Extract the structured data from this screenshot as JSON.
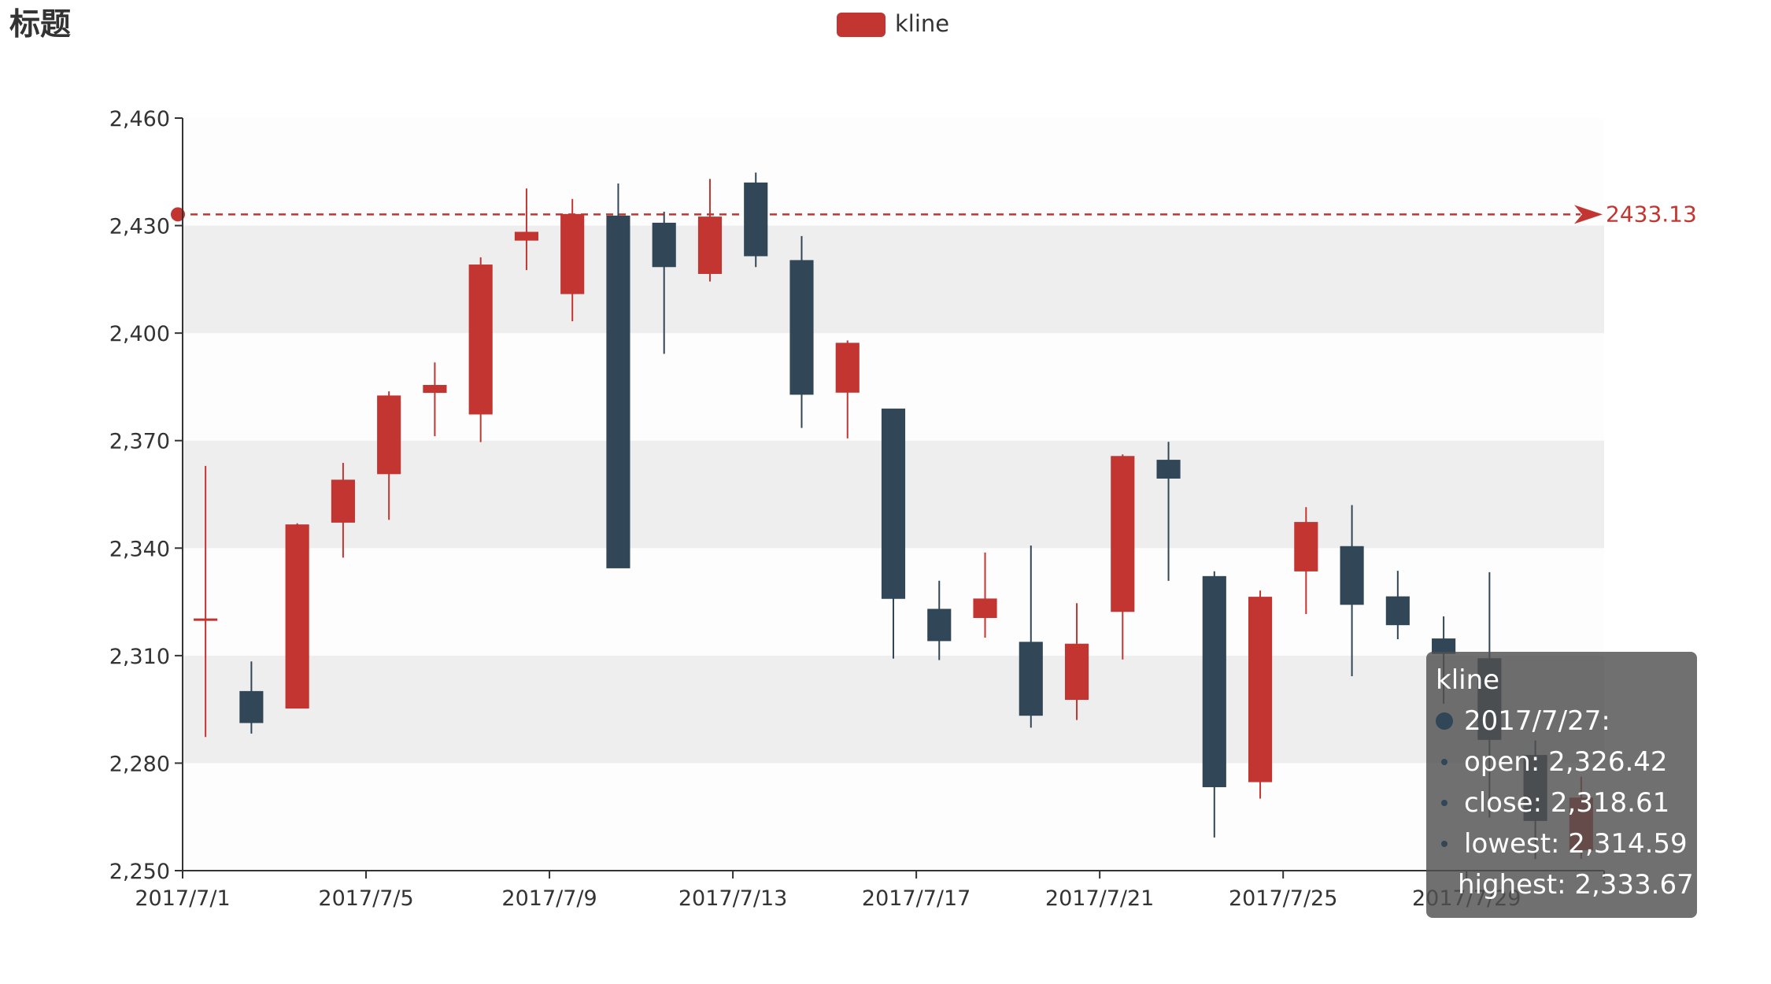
{
  "chart_data": {
    "type": "candlestick",
    "title": "标题",
    "legend": {
      "entries": [
        "kline"
      ],
      "position": "top-center"
    },
    "series": [
      {
        "name": "kline",
        "up_color": "#c23531",
        "down_color": "#314656",
        "points": [
          {
            "date": "2017/7/1",
            "open": 2320.26,
            "close": 2320.26,
            "lowest": 2287.3,
            "highest": 2362.94
          },
          {
            "date": "2017/7/2",
            "open": 2300,
            "close": 2291.3,
            "lowest": 2288.26,
            "highest": 2308.38
          },
          {
            "date": "2017/7/3",
            "open": 2295.35,
            "close": 2346.5,
            "lowest": 2295.35,
            "highest": 2346.92
          },
          {
            "date": "2017/7/4",
            "open": 2347.22,
            "close": 2358.98,
            "lowest": 2337.35,
            "highest": 2363.8
          },
          {
            "date": "2017/7/5",
            "open": 2360.75,
            "close": 2382.48,
            "lowest": 2347.89,
            "highest": 2383.76
          },
          {
            "date": "2017/7/6",
            "open": 2383.43,
            "close": 2385.42,
            "lowest": 2371.23,
            "highest": 2391.82
          },
          {
            "date": "2017/7/7",
            "open": 2377.41,
            "close": 2419.02,
            "lowest": 2369.57,
            "highest": 2421.15
          },
          {
            "date": "2017/7/8",
            "open": 2425.92,
            "close": 2428.15,
            "lowest": 2417.58,
            "highest": 2440.38
          },
          {
            "date": "2017/7/9",
            "open": 2411,
            "close": 2433.13,
            "lowest": 2403.3,
            "highest": 2437.42
          },
          {
            "date": "2017/7/10",
            "open": 2432.68,
            "close": 2334.48,
            "lowest": 2334.48,
            "highest": 2441.73
          },
          {
            "date": "2017/7/11",
            "open": 2430.69,
            "close": 2418.53,
            "lowest": 2394.22,
            "highest": 2433.89
          },
          {
            "date": "2017/7/12",
            "open": 2416.62,
            "close": 2432.4,
            "lowest": 2414.4,
            "highest": 2443.03
          },
          {
            "date": "2017/7/13",
            "open": 2441.91,
            "close": 2421.56,
            "lowest": 2418.43,
            "highest": 2444.8
          },
          {
            "date": "2017/7/14",
            "open": 2420.26,
            "close": 2382.91,
            "lowest": 2373.53,
            "highest": 2427.07
          },
          {
            "date": "2017/7/15",
            "open": 2383.49,
            "close": 2397.18,
            "lowest": 2370.61,
            "highest": 2397.94
          },
          {
            "date": "2017/7/16",
            "open": 2378.82,
            "close": 2325.95,
            "lowest": 2309.17,
            "highest": 2378.82
          },
          {
            "date": "2017/7/17",
            "open": 2322.94,
            "close": 2314.16,
            "lowest": 2308.76,
            "highest": 2330.88
          },
          {
            "date": "2017/7/18",
            "open": 2320.62,
            "close": 2325.82,
            "lowest": 2315.01,
            "highest": 2338.78
          },
          {
            "date": "2017/7/19",
            "open": 2313.74,
            "close": 2293.34,
            "lowest": 2289.89,
            "highest": 2340.71
          },
          {
            "date": "2017/7/20",
            "open": 2297.77,
            "close": 2313.22,
            "lowest": 2292.03,
            "highest": 2324.63
          },
          {
            "date": "2017/7/21",
            "open": 2322.32,
            "close": 2365.59,
            "lowest": 2308.92,
            "highest": 2366.16
          },
          {
            "date": "2017/7/22",
            "open": 2364.54,
            "close": 2359.51,
            "lowest": 2330.86,
            "highest": 2369.65
          },
          {
            "date": "2017/7/23",
            "open": 2332.08,
            "close": 2273.4,
            "lowest": 2259.25,
            "highest": 2333.54
          },
          {
            "date": "2017/7/24",
            "open": 2274.81,
            "close": 2326.31,
            "lowest": 2270.1,
            "highest": 2328.14
          },
          {
            "date": "2017/7/25",
            "open": 2333.61,
            "close": 2347.18,
            "lowest": 2321.6,
            "highest": 2351.44
          },
          {
            "date": "2017/7/26",
            "open": 2340.44,
            "close": 2324.29,
            "lowest": 2304.27,
            "highest": 2352.02
          },
          {
            "date": "2017/7/27",
            "open": 2326.42,
            "close": 2318.61,
            "lowest": 2314.59,
            "highest": 2333.67
          },
          {
            "date": "2017/7/28",
            "open": 2314.68,
            "close": 2310.59,
            "lowest": 2296.58,
            "highest": 2320.96
          },
          {
            "date": "2017/7/29",
            "open": 2309.16,
            "close": 2286.6,
            "lowest": 2264.83,
            "highest": 2333.29
          },
          {
            "date": "2017/7/30",
            "open": 2282.17,
            "close": 2263.97,
            "lowest": 2253.25,
            "highest": 2286.33
          },
          {
            "date": "2017/7/31",
            "open": 2255.77,
            "close": 2270.28,
            "lowest": 2253.31,
            "highest": 2276.22
          }
        ]
      }
    ],
    "x_axis": {
      "type": "category",
      "tick_labels": [
        "2017/7/1",
        "2017/7/5",
        "2017/7/9",
        "2017/7/13",
        "2017/7/17",
        "2017/7/21",
        "2017/7/25",
        "2017/7/29"
      ]
    },
    "y_axis": {
      "ylim": [
        2250,
        2460
      ],
      "ticks": [
        2250,
        2280,
        2310,
        2340,
        2370,
        2400,
        2430,
        2460
      ],
      "tick_labels": [
        "2,250",
        "2,280",
        "2,310",
        "2,340",
        "2,370",
        "2,400",
        "2,430",
        "2,460"
      ],
      "split_area": true
    },
    "mark_line": {
      "value": 2433.13,
      "label": "2433.13",
      "type": "max",
      "color": "#c23531"
    },
    "tooltip": {
      "series_name": "kline",
      "date_label": "2017/7/27:",
      "rows": [
        "open: 2,326.42",
        "close: 2,318.61",
        "lowest: 2,314.59",
        "highest: 2,333.67"
      ],
      "marker_color": "#314656"
    }
  }
}
